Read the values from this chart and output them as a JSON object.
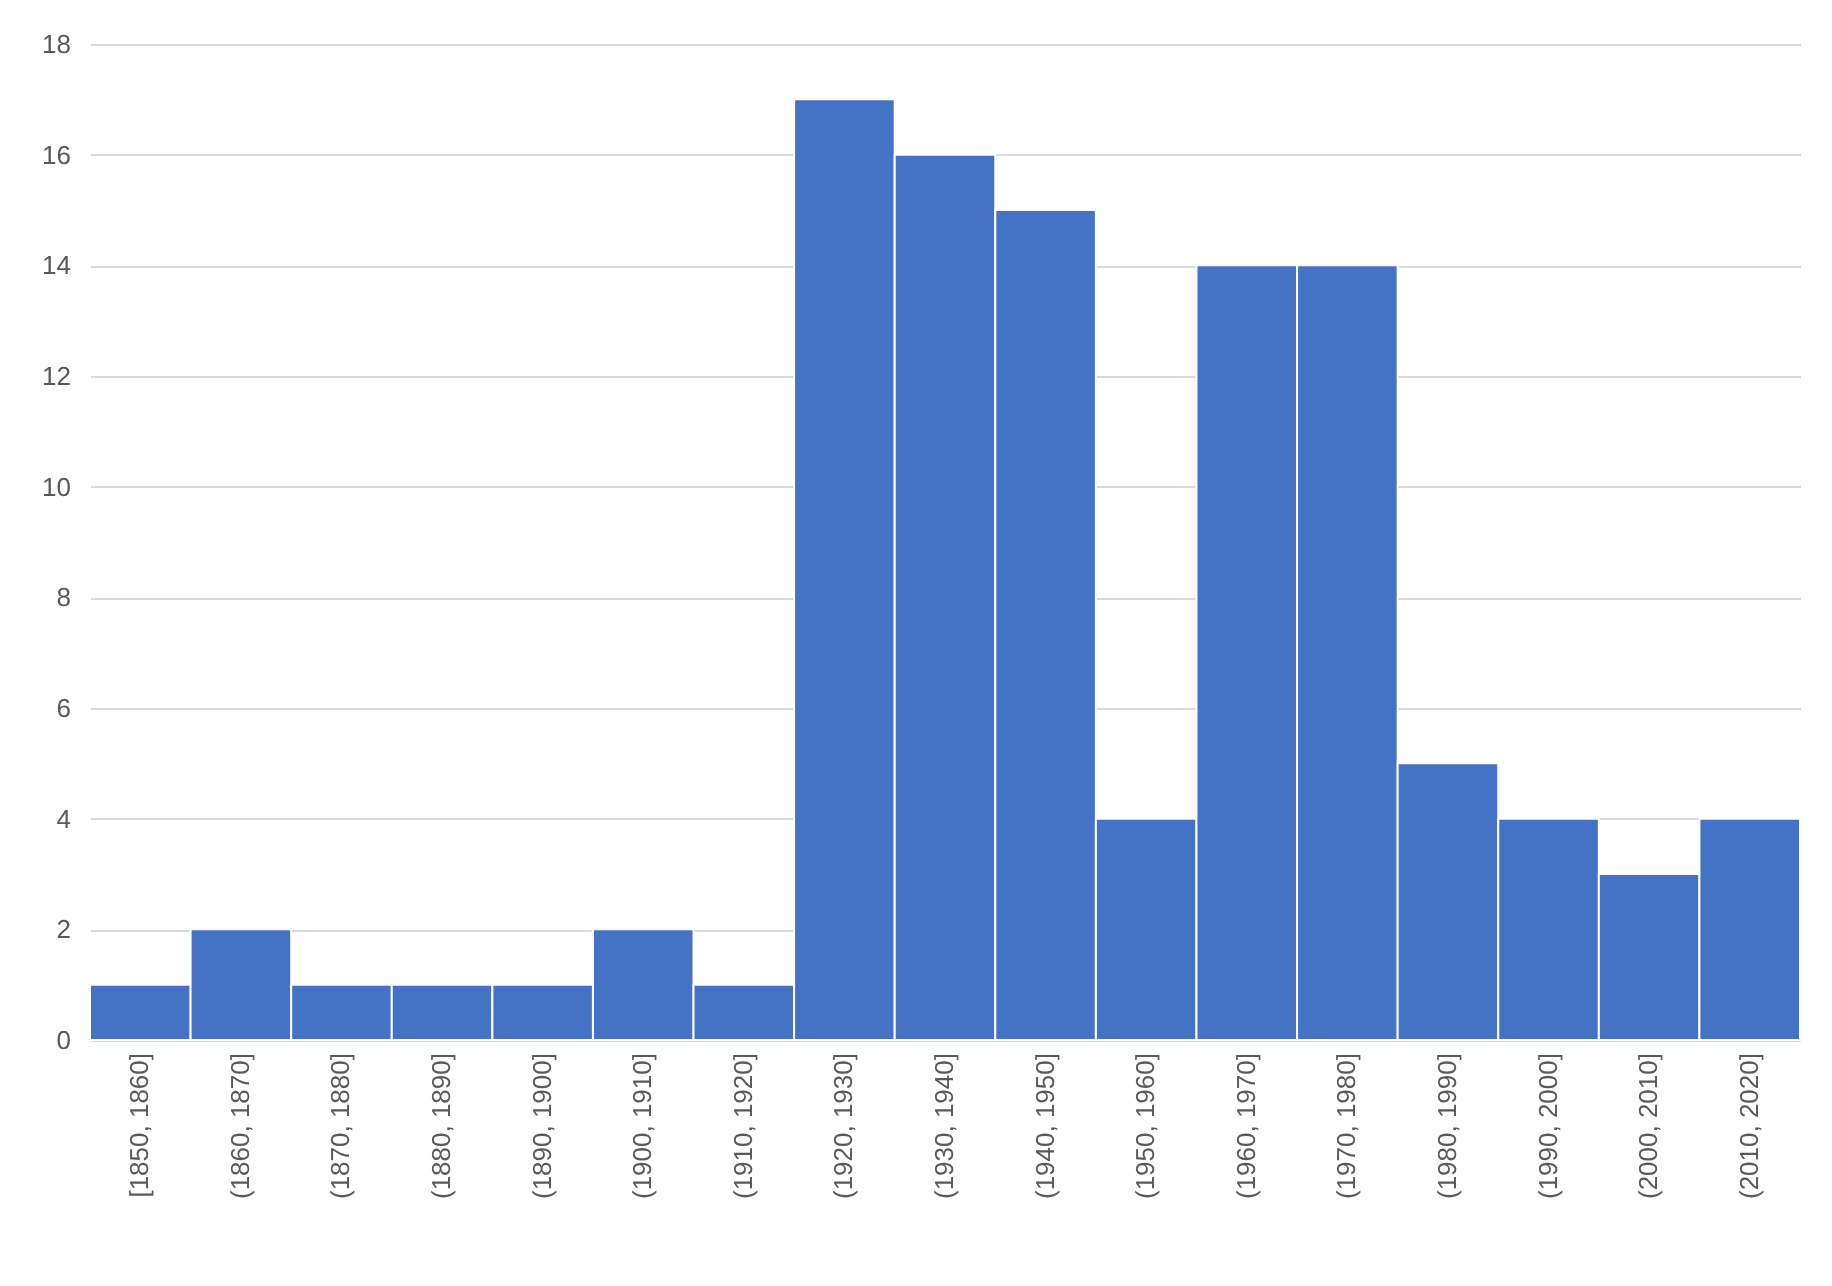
{
  "chart_data": {
    "type": "bar",
    "categories": [
      "[1850, 1860]",
      "(1860, 1870]",
      "(1870, 1880]",
      "(1880, 1890]",
      "(1890, 1900]",
      "(1900, 1910]",
      "(1910, 1920]",
      "(1920, 1930]",
      "(1930, 1940]",
      "(1940, 1950]",
      "(1950, 1960]",
      "(1960, 1970]",
      "(1970, 1980]",
      "(1980, 1990]",
      "(1990, 2000]",
      "(2000, 2010]",
      "(2010, 2020]"
    ],
    "values": [
      1,
      2,
      1,
      1,
      1,
      2,
      1,
      17,
      16,
      15,
      4,
      14,
      14,
      5,
      4,
      3,
      4
    ],
    "color": "#4472c4",
    "ylim": [
      0,
      18
    ],
    "yticks": [
      0,
      2,
      4,
      6,
      8,
      10,
      12,
      14,
      16,
      18
    ],
    "grid": "y"
  }
}
